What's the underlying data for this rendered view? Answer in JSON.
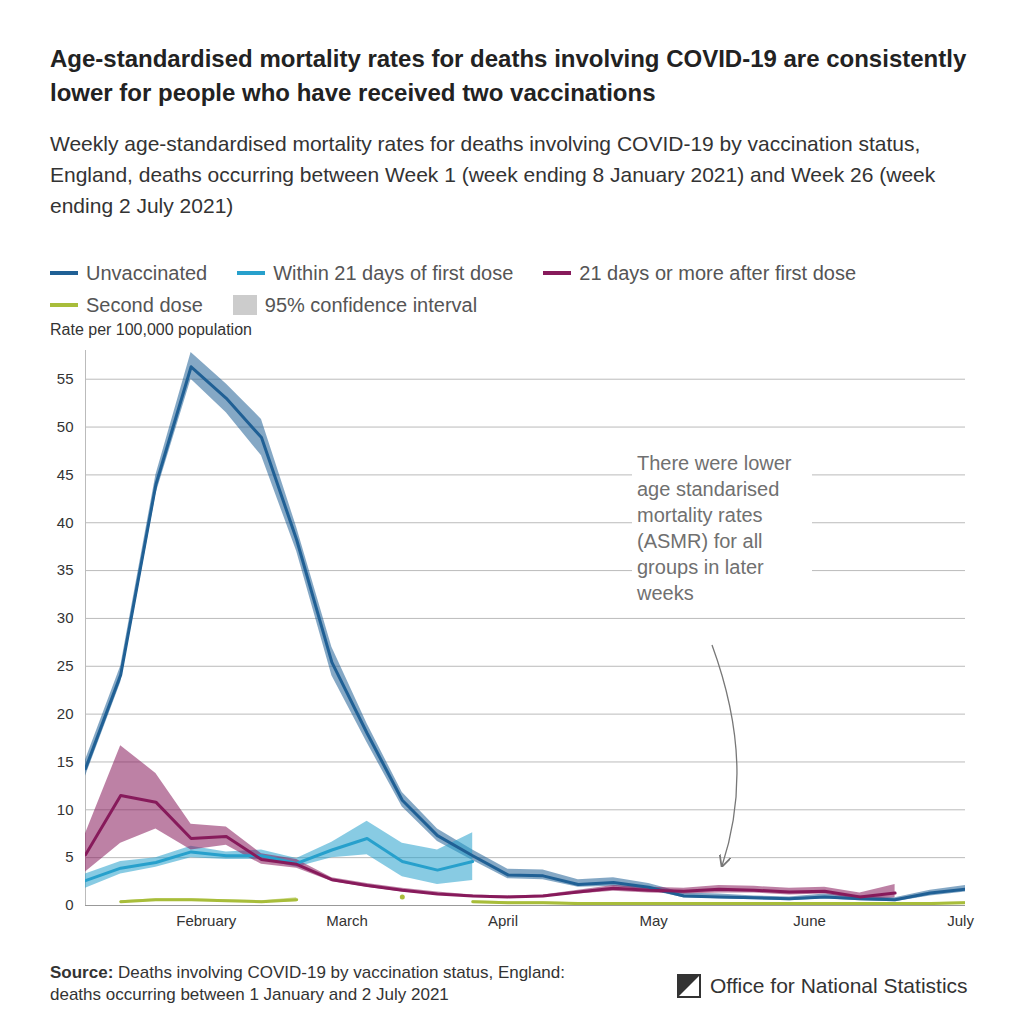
{
  "chart_data": {
    "type": "line",
    "title": "Age-standardised mortality rates for deaths involving COVID-19 are consistently lower for people who have received two vaccinations",
    "subtitle": "Weekly age-standardised mortality rates for deaths involving COVID-19 by vaccination status, England, deaths occurring between Week 1 (week ending 8 January 2021) and Week 26 (week ending 2 July 2021)",
    "y_label": "Rate per 100,000 population",
    "ci_label": "95% confidence interval",
    "x": [
      1,
      2,
      3,
      4,
      5,
      6,
      7,
      8,
      9,
      10,
      11,
      12,
      13,
      14,
      15,
      16,
      17,
      18,
      19,
      20,
      21,
      22,
      23,
      24,
      25,
      26
    ],
    "xlim": [
      1,
      26
    ],
    "xticks": [
      {
        "value": 4.43,
        "label": "February"
      },
      {
        "value": 8.43,
        "label": "March"
      },
      {
        "value": 12.86,
        "label": "April"
      },
      {
        "value": 17.14,
        "label": "May"
      },
      {
        "value": 21.57,
        "label": "June"
      },
      {
        "value": 25.86,
        "label": "July"
      }
    ],
    "ylim": [
      0,
      58
    ],
    "yticks": [
      0,
      5,
      10,
      15,
      20,
      25,
      30,
      35,
      40,
      45,
      50,
      55
    ],
    "grid": true,
    "series": [
      {
        "name": "Unvaccinated",
        "color": "#206095",
        "values": [
          14.3,
          24.1,
          44,
          56.3,
          53,
          48.9,
          38.2,
          25.4,
          18,
          11,
          7.3,
          5.2,
          3.2,
          3.1,
          2.2,
          2.4,
          1.9,
          1,
          0.9,
          0.8,
          0.7,
          0.9,
          0.7,
          0.6,
          1.3,
          1.7
        ],
        "ci_lower": [
          13.5,
          23.3,
          43,
          55,
          51.5,
          47,
          37,
          24,
          17,
          10.3,
          6.7,
          4.7,
          2.8,
          2.7,
          1.9,
          2,
          1.6,
          0.8,
          0.7,
          0.6,
          0.5,
          0.7,
          0.5,
          0.4,
          1,
          1.4
        ],
        "ci_upper": [
          15.2,
          25,
          45,
          57.8,
          54.5,
          50.8,
          39.5,
          27,
          19,
          11.8,
          8,
          5.8,
          3.8,
          3.7,
          2.7,
          2.9,
          2.3,
          1.3,
          1.2,
          1,
          0.9,
          1.2,
          1,
          0.8,
          1.6,
          2.1
        ]
      },
      {
        "name": "Within 21 days of first dose",
        "color": "#27a0cc",
        "values": [
          2.6,
          3.9,
          4.5,
          5.6,
          5.2,
          5.2,
          4.4,
          5.8,
          7,
          4.6,
          3.7,
          4.6,
          null,
          null,
          null,
          null,
          null,
          null,
          null,
          null,
          null,
          null,
          null,
          null,
          null,
          null
        ],
        "ci_lower": [
          1.8,
          3.3,
          4,
          5,
          4.8,
          4.8,
          4,
          5,
          5.3,
          3,
          2.2,
          2.6,
          null,
          null,
          null,
          null,
          null,
          null,
          null,
          null,
          null,
          null,
          null,
          null,
          null,
          null
        ],
        "ci_upper": [
          3.3,
          4.6,
          5,
          6.2,
          5.6,
          5.8,
          4.9,
          6.6,
          8.8,
          6.5,
          5.8,
          7.6,
          null,
          null,
          null,
          null,
          null,
          null,
          null,
          null,
          null,
          null,
          null,
          null,
          null,
          null
        ]
      },
      {
        "name": "21 days or more after first dose",
        "color": "#871a5b",
        "values": [
          5.3,
          11.5,
          10.8,
          7,
          7.2,
          4.8,
          4.3,
          2.7,
          2.1,
          1.6,
          1.2,
          1,
          0.9,
          1,
          1.4,
          1.8,
          1.6,
          1.5,
          1.7,
          1.6,
          1.4,
          1.5,
          0.9,
          1.3,
          null,
          null
        ],
        "ci_lower": [
          3.5,
          6.5,
          8,
          5.8,
          6.3,
          4.3,
          3.9,
          2.5,
          1.9,
          1.4,
          1.1,
          0.9,
          0.8,
          0.9,
          1.2,
          1.5,
          1.3,
          1.2,
          1.3,
          1.3,
          1.1,
          1.2,
          0.6,
          0.8,
          null,
          null
        ],
        "ci_upper": [
          7.5,
          16.7,
          13.8,
          8.5,
          8.2,
          5.4,
          4.8,
          2.9,
          2.3,
          1.8,
          1.4,
          1.1,
          1,
          1.1,
          1.6,
          2.1,
          1.9,
          1.8,
          2.1,
          2,
          1.8,
          1.9,
          1.3,
          2.2,
          null,
          null
        ]
      },
      {
        "name": "Second dose",
        "color": "#a8bd3a",
        "values": [
          null,
          0.4,
          0.6,
          0.6,
          0.5,
          0.4,
          0.6,
          null,
          null,
          0.9,
          null,
          0.4,
          0.3,
          0.3,
          0.2,
          0.2,
          0.2,
          0.2,
          0.2,
          0.2,
          0.2,
          0.2,
          0.2,
          0.2,
          0.2,
          0.3
        ],
        "ci_lower": [
          null,
          0.3,
          0.5,
          0.5,
          0.4,
          0.3,
          0.4,
          null,
          null,
          0.6,
          null,
          0.3,
          0.2,
          0.2,
          0.1,
          0.1,
          0.1,
          0.1,
          0.1,
          0.1,
          0.1,
          0.1,
          0.1,
          0.1,
          0.1,
          0.2
        ],
        "ci_upper": [
          null,
          0.5,
          0.7,
          0.7,
          0.6,
          0.5,
          0.8,
          null,
          null,
          1.2,
          null,
          0.5,
          0.4,
          0.4,
          0.3,
          0.3,
          0.3,
          0.3,
          0.3,
          0.3,
          0.3,
          0.3,
          0.3,
          0.3,
          0.3,
          0.4
        ]
      }
    ],
    "annotations": [
      {
        "text": "There were lower age standarised mortality rates (ASMR) for all groups in later weeks"
      }
    ],
    "source_label": "Source:",
    "source": "Deaths involving COVID-19 by vaccination status, England: deaths occurring between 1 January and 2 July 2021",
    "publisher": "Office for National Statistics"
  }
}
